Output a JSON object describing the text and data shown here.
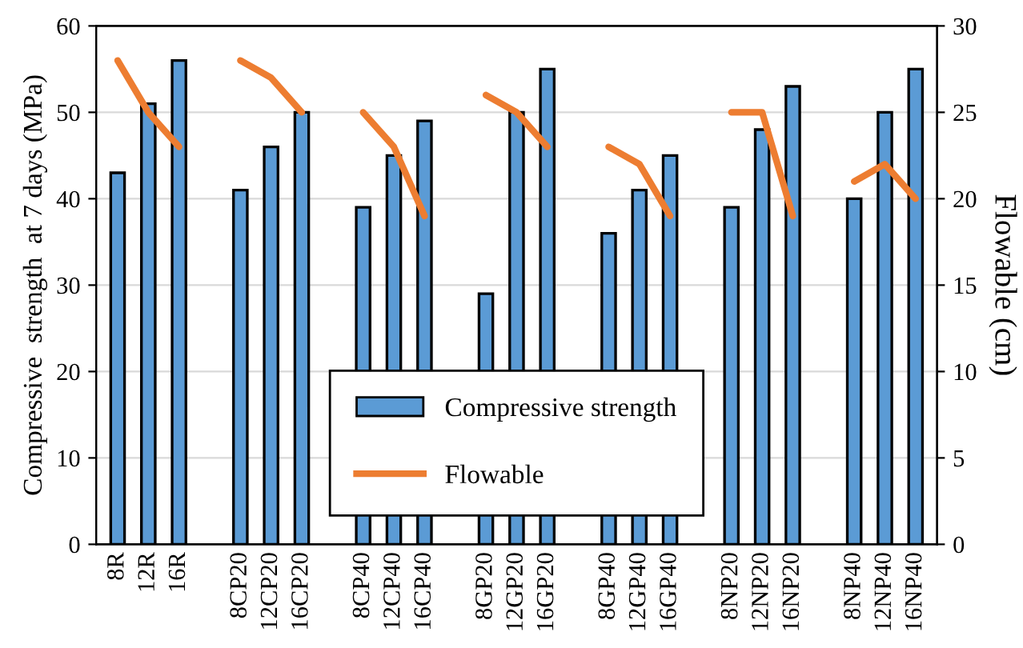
{
  "chart_data": {
    "type": "bar",
    "categories": [
      "8R",
      "12R",
      "16R",
      null,
      "8CP20",
      "12CP20",
      "16CP20",
      null,
      "8CP40",
      "12CP40",
      "16CP40",
      null,
      "8GP20",
      "12GP20",
      "16GP20",
      null,
      "8GP40",
      "12GP40",
      "16GP40",
      null,
      "8NP20",
      "12NP20",
      "16NP20",
      null,
      "8NP40",
      "12NP40",
      "16NP40"
    ],
    "ylabel": "Compressive  strength  at 7 days (MPa)",
    "y2label": "Flowable (cm)",
    "series": [
      {
        "name": "Compressive strength",
        "color": "#5b9bd5",
        "values": [
          43,
          51,
          56,
          null,
          41,
          46,
          50,
          null,
          39,
          45,
          49,
          null,
          29,
          50,
          55,
          null,
          36,
          41,
          45,
          null,
          39,
          48,
          53,
          null,
          40,
          50,
          55
        ]
      },
      {
        "name": "Flowable",
        "type": "line",
        "axis": "y2",
        "color": "#ed7d31",
        "values": [
          28,
          25,
          23,
          null,
          28,
          27,
          25,
          null,
          25,
          23,
          19,
          null,
          26,
          25,
          23,
          null,
          23,
          22,
          19,
          null,
          25,
          25,
          19,
          null,
          21,
          22,
          20
        ]
      }
    ],
    "ylim": [
      0,
      60
    ],
    "yticks": [
      0,
      10,
      20,
      30,
      40,
      50,
      60
    ],
    "y2lim": [
      0,
      30
    ],
    "y2ticks": [
      0,
      5,
      10,
      15,
      20,
      25,
      30
    ],
    "grid": "y",
    "legend": "bottom",
    "marker": "none",
    "line_style": "solid"
  }
}
